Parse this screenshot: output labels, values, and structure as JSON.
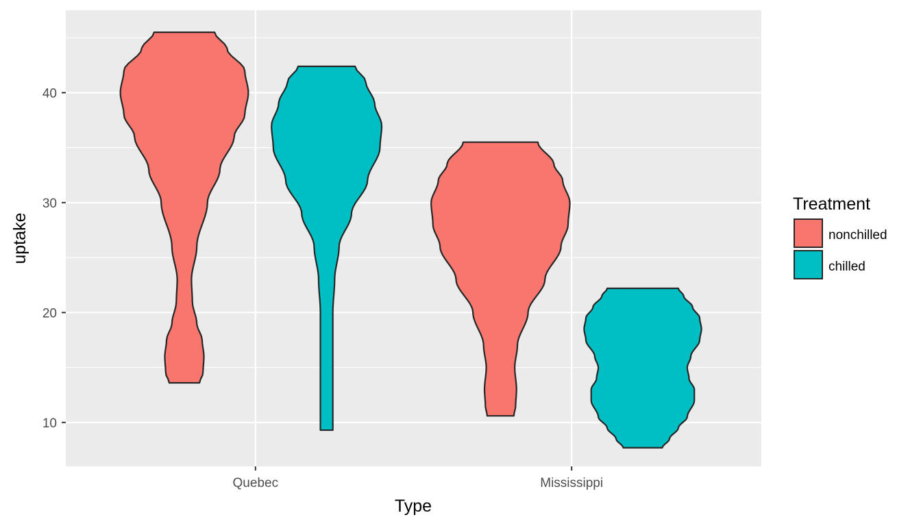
{
  "chart_data": {
    "type": "violin",
    "xlabel": "Type",
    "ylabel": "uptake",
    "categories": [
      "Quebec",
      "Mississippi"
    ],
    "ylim": [
      6,
      47.5
    ],
    "yticks": [
      10,
      20,
      30,
      40
    ],
    "grid": true,
    "legend": {
      "title": "Treatment",
      "placement": "right",
      "entries": [
        {
          "label": "nonchilled",
          "color": "#F8766D"
        },
        {
          "label": "chilled",
          "color": "#00BFC4"
        }
      ]
    },
    "series": [
      {
        "name": "nonchilled",
        "color": "#F8766D",
        "violins": [
          {
            "category": "Quebec",
            "min": 13.6,
            "max": 45.5,
            "density_profile": [
              [
                13.6,
                0.085
              ],
              [
                14.5,
                0.105
              ],
              [
                16,
                0.11
              ],
              [
                17.5,
                0.1
              ],
              [
                19,
                0.07
              ],
              [
                21,
                0.045
              ],
              [
                23,
                0.04
              ],
              [
                26,
                0.07
              ],
              [
                30,
                0.13
              ],
              [
                33,
                0.2
              ],
              [
                36,
                0.28
              ],
              [
                38,
                0.34
              ],
              [
                40,
                0.36
              ],
              [
                42,
                0.34
              ],
              [
                44,
                0.24
              ],
              [
                45.5,
                0.17
              ]
            ]
          },
          {
            "category": "Mississippi",
            "min": 10.6,
            "max": 35.5,
            "density_profile": [
              [
                10.6,
                0.075
              ],
              [
                11.5,
                0.085
              ],
              [
                13,
                0.09
              ],
              [
                15,
                0.08
              ],
              [
                17,
                0.095
              ],
              [
                20,
                0.155
              ],
              [
                23,
                0.25
              ],
              [
                26,
                0.34
              ],
              [
                28,
                0.38
              ],
              [
                30,
                0.39
              ],
              [
                32,
                0.35
              ],
              [
                33.5,
                0.3
              ],
              [
                35.5,
                0.21
              ]
            ]
          }
        ]
      },
      {
        "name": "chilled",
        "color": "#00BFC4",
        "violins": [
          {
            "category": "Quebec",
            "min": 9.3,
            "max": 42.4,
            "density_profile": [
              [
                9.3,
                0.035
              ],
              [
                11,
                0.035
              ],
              [
                14,
                0.035
              ],
              [
                17,
                0.035
              ],
              [
                20,
                0.035
              ],
              [
                23,
                0.045
              ],
              [
                26,
                0.07
              ],
              [
                29,
                0.14
              ],
              [
                32,
                0.23
              ],
              [
                35,
                0.3
              ],
              [
                37,
                0.31
              ],
              [
                39,
                0.27
              ],
              [
                41,
                0.22
              ],
              [
                42.4,
                0.16
              ]
            ]
          },
          {
            "category": "Mississippi",
            "min": 7.7,
            "max": 22.2,
            "density_profile": [
              [
                7.7,
                0.11
              ],
              [
                8.5,
                0.15
              ],
              [
                9.5,
                0.2
              ],
              [
                10.5,
                0.25
              ],
              [
                12,
                0.29
              ],
              [
                13,
                0.29
              ],
              [
                14,
                0.26
              ],
              [
                15,
                0.25
              ],
              [
                16,
                0.27
              ],
              [
                17.5,
                0.32
              ],
              [
                18.5,
                0.33
              ],
              [
                19.5,
                0.32
              ],
              [
                20.5,
                0.28
              ],
              [
                21.5,
                0.23
              ],
              [
                22.2,
                0.2
              ]
            ]
          }
        ]
      }
    ]
  }
}
